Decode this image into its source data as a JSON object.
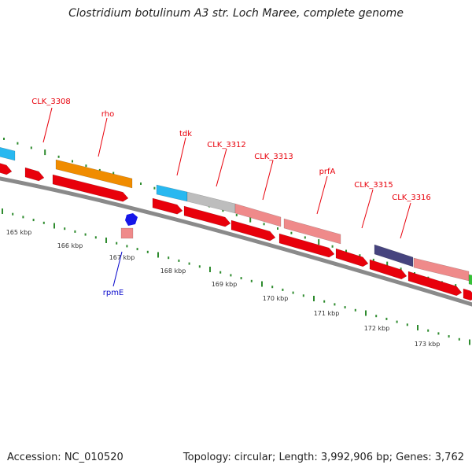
{
  "title": "Clostridium botulinum A3 str. Loch Maree, complete genome",
  "footer": {
    "accession": "Accession: NC_010520",
    "summary": "Topology: circular; Length: 3,992,906 bp; Genes: 3,762"
  },
  "colors": {
    "backbone": "#8a8a8a",
    "gene_label": "#e8000b",
    "feature_label": "#0a0acc",
    "tick": "#2e8b2e",
    "cds": "#e8000b",
    "cyan": "#28b8f0",
    "orange": "#f08c00",
    "grey": "#bdbdbd",
    "pink": "#ef8a8a",
    "purple": "#46447e",
    "green": "#36c236",
    "blue": "#1616e8"
  },
  "gene_labels": [
    "CLK_3308",
    "rho",
    "tdk",
    "CLK_3312",
    "CLK_3313",
    "prfA",
    "CLK_3315",
    "CLK_3316"
  ],
  "feature_labels": [
    "rpmE"
  ],
  "kbp_labels": [
    "165 kbp",
    "166 kbp",
    "167 kbp",
    "168 kbp",
    "169 kbp",
    "170 kbp",
    "171 kbp",
    "172 kbp",
    "173 kbp"
  ]
}
